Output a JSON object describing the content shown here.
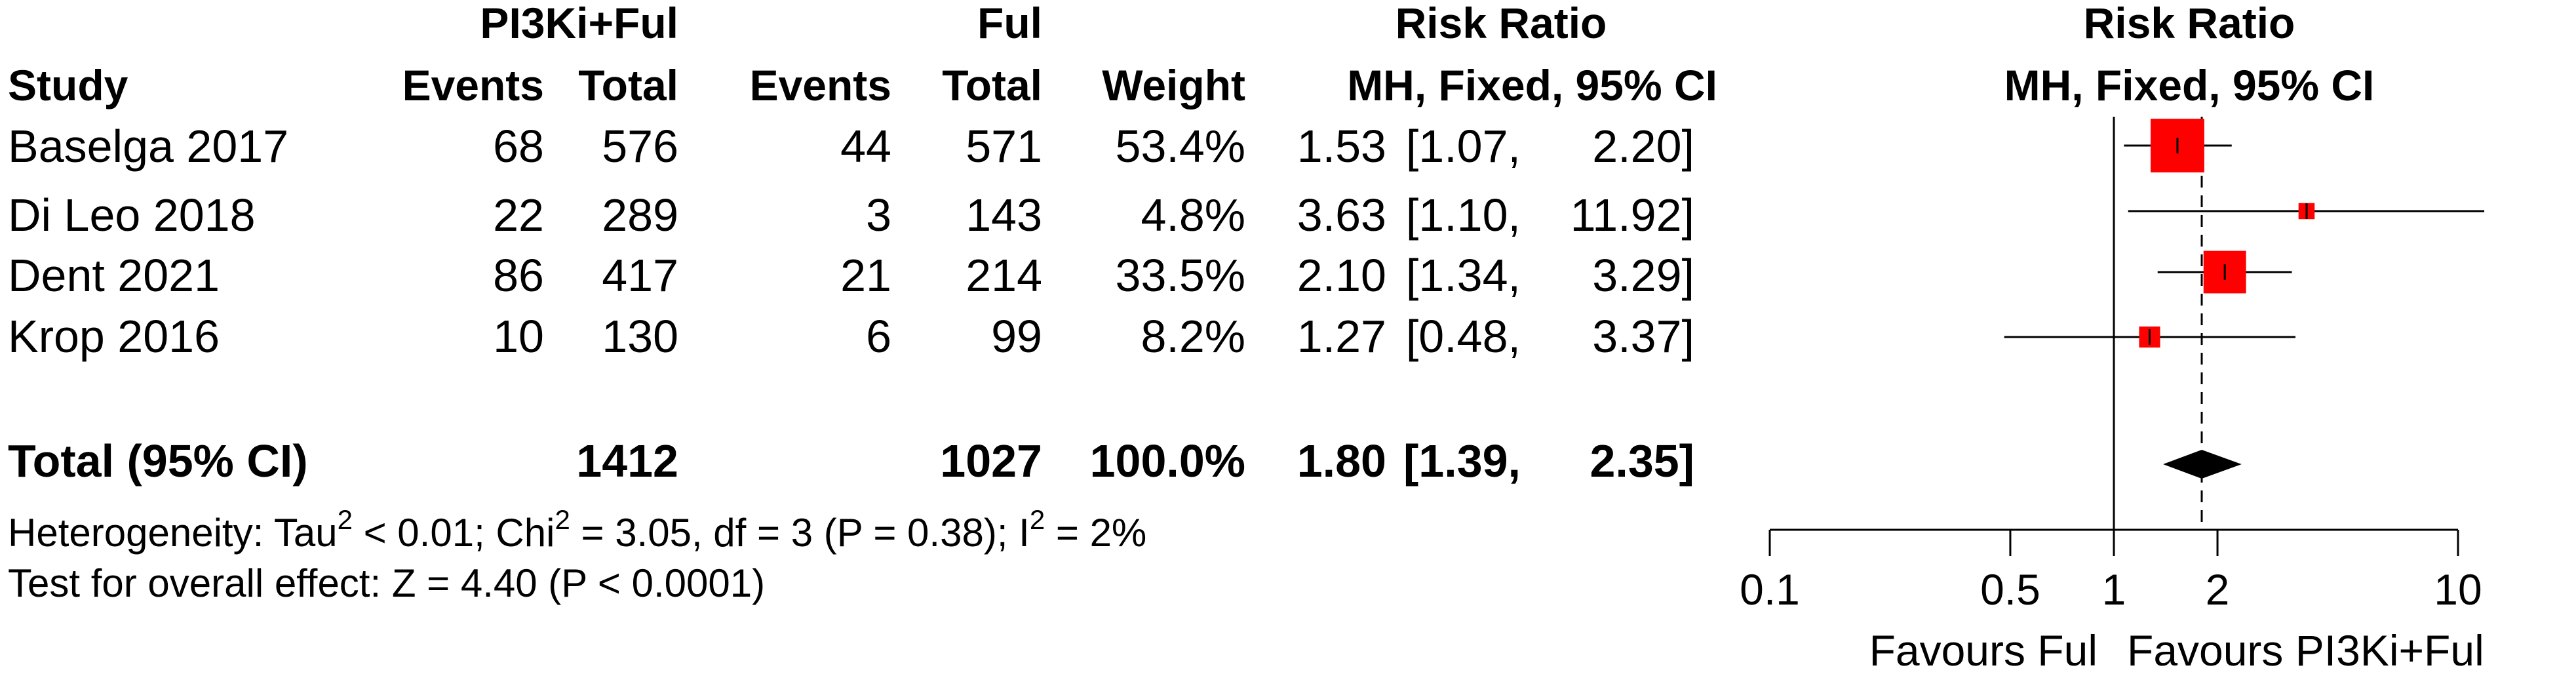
{
  "header": {
    "group1": "PI3Ki+Ful",
    "group2": "Ful",
    "study": "Study",
    "events1": "Events",
    "total1": "Total",
    "events2": "Events",
    "total2": "Total",
    "weight": "Weight",
    "rr_title": "Risk Ratio",
    "rr_method": "MH, Fixed, 95% CI",
    "plot_title": "Risk Ratio",
    "plot_method": "MH, Fixed, 95% CI"
  },
  "rows": [
    {
      "study": "Baselga 2017",
      "events1": "68",
      "total1": "576",
      "events2": "44",
      "total2": "571",
      "weight": "53.4%",
      "rr": "1.53",
      "ci_low": "[1.07,",
      "ci_high": "2.20]"
    },
    {
      "study": "Di Leo 2018",
      "events1": "22",
      "total1": "289",
      "events2": "3",
      "total2": "143",
      "weight": "4.8%",
      "rr": "3.63",
      "ci_low": "[1.10,",
      "ci_high": "11.92]"
    },
    {
      "study": "Dent 2021",
      "events1": "86",
      "total1": "417",
      "events2": "21",
      "total2": "214",
      "weight": "33.5%",
      "rr": "2.10",
      "ci_low": "[1.34,",
      "ci_high": "3.29]"
    },
    {
      "study": "Krop 2016",
      "events1": "10",
      "total1": "130",
      "events2": "6",
      "total2": "99",
      "weight": "8.2%",
      "rr": "1.27",
      "ci_low": "[0.48,",
      "ci_high": "3.37]"
    }
  ],
  "total": {
    "label": "Total (95% CI)",
    "total1": "1412",
    "total2": "1027",
    "weight": "100.0%",
    "rr": "1.80",
    "ci_low": "[1.39,",
    "ci_high": "2.35]"
  },
  "heterogeneity": {
    "p1": "Heterogeneity: Tau",
    "s1": "2",
    "p2": " < 0.01; Chi",
    "s2": "2",
    "p3": " = 3.05, df = 3 (P = 0.38); I",
    "s3": "2",
    "p4": " = 2%"
  },
  "overall_effect": "Test for overall effect: Z = 4.40 (P < 0.0001)",
  "axis_labels": {
    "favours_left": "Favours Ful",
    "favours_right": "Favours PI3Ki+Ful"
  },
  "chart_data": {
    "type": "forest",
    "scale": "log",
    "xlim": [
      0.1,
      10
    ],
    "x_ticks": [
      {
        "value": 0.1,
        "label": "0.1"
      },
      {
        "value": 0.5,
        "label": "0.5"
      },
      {
        "value": 1,
        "label": "1"
      },
      {
        "value": 2,
        "label": "2"
      },
      {
        "value": 10,
        "label": "10"
      }
    ],
    "null_line": 1,
    "pooled_line": 1.8,
    "studies": [
      {
        "name": "Baselga 2017",
        "rr": 1.53,
        "lower": 1.07,
        "upper": 2.2,
        "weight": 53.4
      },
      {
        "name": "Di Leo 2018",
        "rr": 3.63,
        "lower": 1.1,
        "upper": 11.92,
        "weight": 4.8
      },
      {
        "name": "Dent 2021",
        "rr": 2.1,
        "lower": 1.34,
        "upper": 3.29,
        "weight": 33.5
      },
      {
        "name": "Krop 2016",
        "rr": 1.27,
        "lower": 0.48,
        "upper": 3.37,
        "weight": 8.2
      }
    ],
    "pooled": {
      "rr": 1.8,
      "lower": 1.39,
      "upper": 2.35
    },
    "colors": {
      "box": "#ff0000",
      "diamond": "#000000"
    }
  }
}
